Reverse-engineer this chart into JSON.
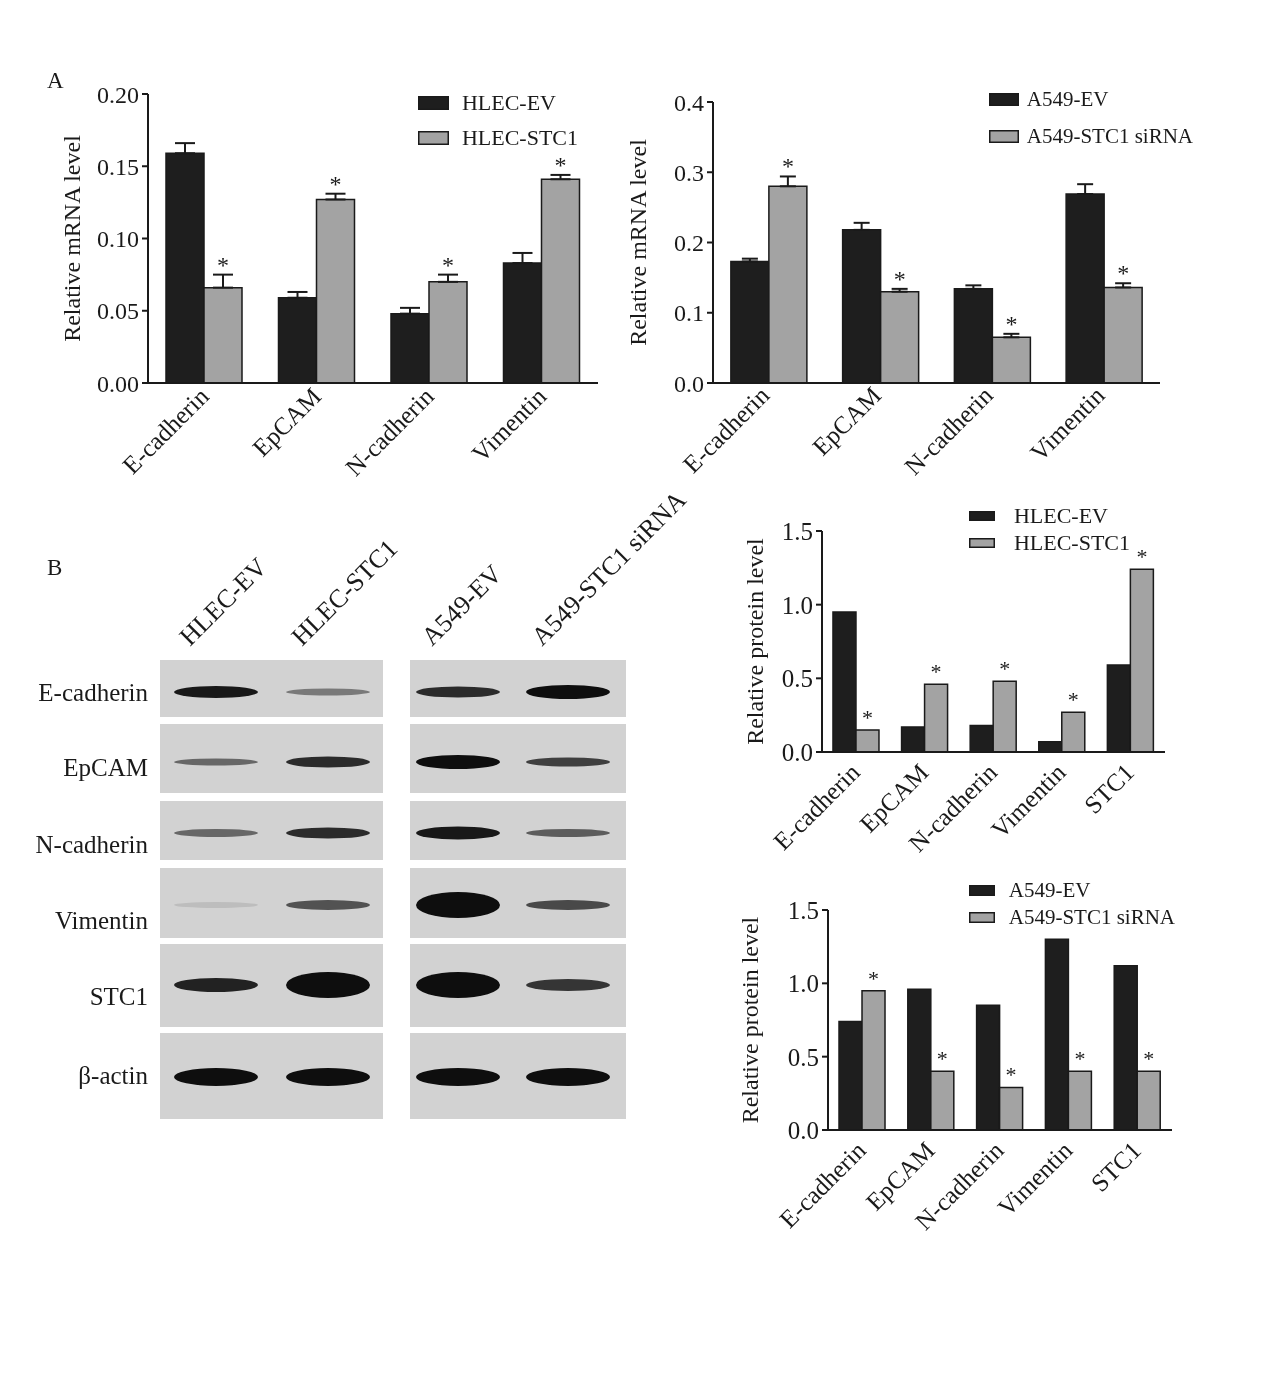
{
  "chart_data": [
    {
      "type": "bar",
      "ylabel": "Relative mRNA level",
      "annotations": [
        "A"
      ],
      "categories": [
        "E-cadherin",
        "EpCAM",
        "N-cadherin",
        "Vimentin"
      ],
      "series": [
        {
          "name": "HLEC-EV",
          "color": "#1e1e1e",
          "values": [
            0.159,
            0.059,
            0.048,
            0.083
          ],
          "errors": [
            0.007,
            0.004,
            0.004,
            0.007
          ]
        },
        {
          "name": "HLEC-STC1",
          "color": "#a3a3a3",
          "values": [
            0.066,
            0.127,
            0.07,
            0.141
          ],
          "errors": [
            0.009,
            0.004,
            0.005,
            0.003
          ],
          "value_labels": [
            "*",
            "*",
            "*",
            "*"
          ]
        }
      ],
      "ylim": [
        0,
        0.2
      ],
      "yticks": [
        {
          "value": 0,
          "label": "0.00"
        },
        0.05,
        {
          "value": 0.1,
          "label": "0.10"
        },
        0.15,
        {
          "value": 0.2,
          "label": "0.20"
        }
      ],
      "legend": "top right"
    },
    {
      "type": "bar",
      "ylabel": "Relative mRNA level",
      "categories": [
        "E-cadherin",
        "EpCAM",
        "N-cadherin",
        "Vimentin"
      ],
      "series": [
        {
          "name": "A549-EV",
          "color": "#1e1e1e",
          "values": [
            0.173,
            0.218,
            0.134,
            0.269
          ],
          "errors": [
            0.004,
            0.01,
            0.005,
            0.014
          ]
        },
        {
          "name": "A549-STC1 siRNA",
          "color": "#a3a3a3",
          "values": [
            0.28,
            0.13,
            0.065,
            0.136
          ],
          "errors": [
            0.014,
            0.004,
            0.005,
            0.006
          ],
          "value_labels": [
            "*",
            "*",
            "*",
            "*"
          ]
        }
      ],
      "ylim": [
        0,
        0.4
      ],
      "yticks": [
        {
          "value": 0,
          "label": "0.0"
        },
        0.1,
        0.2,
        0.3,
        0.4
      ],
      "legend": "top right"
    },
    {
      "type": "other",
      "annotations": [
        "B"
      ],
      "categories": [
        "HLEC-EV",
        "HLEC-STC1",
        "A549-EV",
        "A549-STC1 siRNA"
      ],
      "y_categories": [
        "E-cadherin",
        "EpCAM",
        "N-cadherin",
        "Vimentin",
        "STC1",
        "β-actin"
      ]
    },
    {
      "type": "bar",
      "ylabel": "Relative protein level",
      "categories": [
        "E-cadherin",
        "EpCAM",
        "N-cadherin",
        "Vimentin",
        "STC1"
      ],
      "series": [
        {
          "name": "HLEC-EV",
          "color": "#1e1e1e",
          "values": [
            0.95,
            0.17,
            0.18,
            0.07,
            0.59
          ]
        },
        {
          "name": "HLEC-STC1",
          "color": "#a3a3a3",
          "values": [
            0.15,
            0.46,
            0.48,
            0.27,
            1.24
          ],
          "value_labels": [
            "*",
            "*",
            "*",
            "*",
            "*"
          ]
        }
      ],
      "ylim": [
        0,
        1.5
      ],
      "yticks": [
        {
          "value": 0,
          "label": "0.0"
        },
        0.5,
        {
          "value": 1,
          "label": "1.0"
        },
        1.5
      ],
      "legend": "top right"
    },
    {
      "type": "bar",
      "ylabel": "Relative protein level",
      "categories": [
        "E-cadherin",
        "EpCAM",
        "N-cadherin",
        "Vimentin",
        "STC1"
      ],
      "series": [
        {
          "name": "A549-EV",
          "color": "#1e1e1e",
          "values": [
            0.74,
            0.96,
            0.85,
            1.3,
            1.12
          ]
        },
        {
          "name": "A549-STC1 siRNA",
          "color": "#a3a3a3",
          "values": [
            0.95,
            0.4,
            0.29,
            0.4,
            0.4
          ],
          "value_labels": [
            "*",
            "*",
            "*",
            "*",
            "*"
          ]
        }
      ],
      "ylim": [
        0,
        1.5
      ],
      "yticks": [
        {
          "value": 0,
          "label": "0.0"
        },
        0.5,
        {
          "value": 1,
          "label": "1.0"
        },
        1.5
      ],
      "legend": "top right"
    }
  ]
}
